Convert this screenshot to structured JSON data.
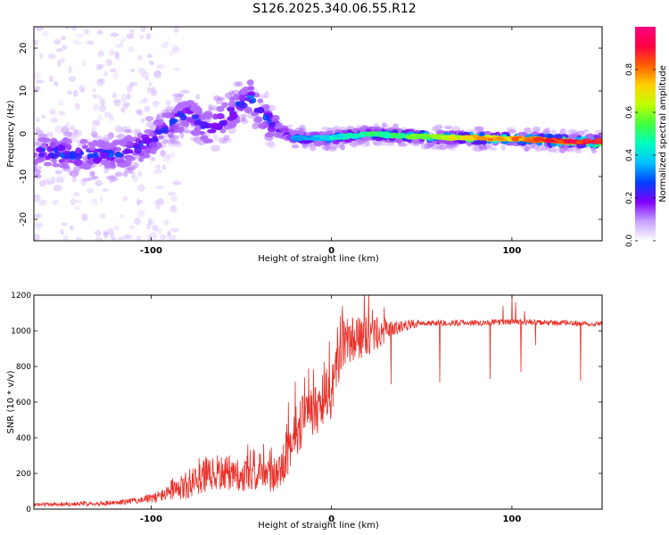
{
  "title": "S126.2025.340.06.55.R12",
  "chart_data": [
    {
      "type": "heatmap",
      "xlabel": "Height of straight line (km)",
      "ylabel": "Frequency (Hz)",
      "xlim": [
        -165,
        150
      ],
      "ylim": [
        -25,
        25
      ],
      "xticks": [
        -100,
        0,
        100
      ],
      "yticks": [
        -20,
        -10,
        0,
        10,
        20
      ],
      "colorbar": {
        "label": "Normalized spectral amplitude",
        "range": [
          0,
          1
        ],
        "ticks": [
          0.0,
          0.2,
          0.4,
          0.6,
          0.8
        ],
        "colors": [
          "#ffffff",
          "#c8a0ff",
          "#8000ff",
          "#0040ff",
          "#00c0ff",
          "#00ffc0",
          "#40ff40",
          "#c0ff00",
          "#ffd000",
          "#ff6000",
          "#ff0040",
          "#ff0080"
        ]
      },
      "ridge": [
        {
          "x": -160,
          "y": -4,
          "a": 0.3
        },
        {
          "x": -140,
          "y": -5,
          "a": 0.3
        },
        {
          "x": -120,
          "y": -5,
          "a": 0.3
        },
        {
          "x": -105,
          "y": -3,
          "a": 0.3
        },
        {
          "x": -90,
          "y": 2,
          "a": 0.3
        },
        {
          "x": -80,
          "y": 5,
          "a": 0.3
        },
        {
          "x": -70,
          "y": 1,
          "a": 0.3
        },
        {
          "x": -55,
          "y": 5,
          "a": 0.3
        },
        {
          "x": -45,
          "y": 9,
          "a": 0.3
        },
        {
          "x": -40,
          "y": 5,
          "a": 0.3
        },
        {
          "x": -30,
          "y": 1,
          "a": 0.3
        },
        {
          "x": -20,
          "y": -1,
          "a": 0.35
        },
        {
          "x": -10,
          "y": -1,
          "a": 0.4
        },
        {
          "x": 0,
          "y": -1,
          "a": 0.45
        },
        {
          "x": 20,
          "y": 0,
          "a": 0.5
        },
        {
          "x": 40,
          "y": -0.5,
          "a": 0.55
        },
        {
          "x": 60,
          "y": -0.8,
          "a": 0.65
        },
        {
          "x": 80,
          "y": -1,
          "a": 0.75
        },
        {
          "x": 100,
          "y": -1.2,
          "a": 0.8
        },
        {
          "x": 120,
          "y": -1.5,
          "a": 0.85
        },
        {
          "x": 130,
          "y": -1.8,
          "a": 0.95
        },
        {
          "x": 145,
          "y": -1.8,
          "a": 1.0
        }
      ]
    },
    {
      "type": "line",
      "xlabel": "Height of straight line (km)",
      "ylabel": "SNR (10 * v/v)",
      "xlim": [
        -165,
        150
      ],
      "ylim": [
        0,
        1200
      ],
      "xticks": [
        -100,
        0,
        100
      ],
      "yticks": [
        0,
        200,
        400,
        600,
        800,
        1000,
        1200
      ],
      "color": "#e8312a",
      "trend": {
        "x": [
          -165,
          -120,
          -100,
          -90,
          -80,
          -70,
          -60,
          -50,
          -40,
          -30,
          -20,
          -15,
          -10,
          0,
          5,
          10,
          20,
          30,
          40,
          50,
          60,
          80,
          100,
          120,
          150
        ],
        "y": [
          25,
          35,
          60,
          90,
          130,
          180,
          200,
          190,
          180,
          200,
          420,
          520,
          550,
          650,
          900,
          950,
          970,
          1000,
          1030,
          1045,
          1045,
          1045,
          1050,
          1045,
          1040
        ]
      },
      "noise_amplitude": {
        "x": [
          -165,
          -110,
          -90,
          -80,
          -60,
          -40,
          -20,
          0,
          20,
          35,
          50,
          150
        ],
        "y": [
          10,
          15,
          40,
          90,
          100,
          80,
          150,
          150,
          120,
          40,
          18,
          15
        ]
      },
      "dips": [
        {
          "x": 33,
          "y": 700
        },
        {
          "x": 60,
          "y": 710
        },
        {
          "x": 88,
          "y": 730
        },
        {
          "x": 95,
          "y": 890
        },
        {
          "x": 105,
          "y": 770
        },
        {
          "x": 113,
          "y": 920
        },
        {
          "x": 138,
          "y": 720
        }
      ],
      "spikes": [
        {
          "x": 95,
          "y": 1140
        },
        {
          "x": 100,
          "y": 1200
        },
        {
          "x": 102,
          "y": 1160
        },
        {
          "x": 107,
          "y": 1110
        }
      ]
    }
  ]
}
